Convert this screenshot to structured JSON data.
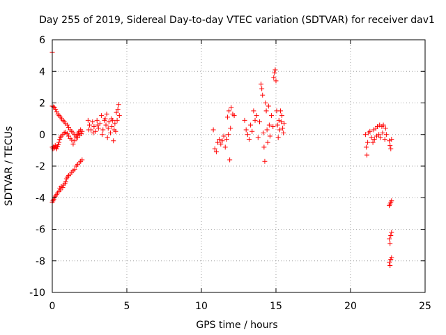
{
  "chart_data": {
    "type": "scatter",
    "title": "Day 255 of 2019, Sidereal Day-to-day VTEC variation (SDTVAR) for receiver dav1",
    "xlabel": "GPS time / hours",
    "ylabel": "SDTVAR / TECUs",
    "xlim": [
      0,
      25
    ],
    "ylim": [
      -10,
      6
    ],
    "xticks": [
      0,
      5,
      10,
      15,
      20,
      25
    ],
    "yticks": [
      -10,
      -8,
      -6,
      -4,
      -2,
      0,
      2,
      4,
      6
    ],
    "grid": true,
    "marker": "+",
    "color": "#ff0000",
    "series": [
      {
        "name": "dav1",
        "points": [
          [
            0.0,
            5.2
          ],
          [
            0.0,
            1.8
          ],
          [
            0.08,
            1.75
          ],
          [
            0.15,
            1.7
          ],
          [
            0.22,
            1.6
          ],
          [
            0.3,
            1.45
          ],
          [
            0.38,
            1.3
          ],
          [
            0.46,
            1.2
          ],
          [
            0.55,
            1.1
          ],
          [
            0.63,
            1.0
          ],
          [
            0.72,
            0.9
          ],
          [
            0.8,
            0.8
          ],
          [
            0.9,
            0.7
          ],
          [
            1.0,
            0.6
          ],
          [
            1.1,
            0.45
          ],
          [
            1.2,
            0.3
          ],
          [
            1.3,
            0.2
          ],
          [
            1.4,
            0.1
          ],
          [
            1.5,
            0.0
          ],
          [
            1.6,
            -0.1
          ],
          [
            1.7,
            -0.2
          ],
          [
            0.0,
            -0.8
          ],
          [
            0.05,
            -0.9
          ],
          [
            0.1,
            -0.75
          ],
          [
            0.15,
            -0.85
          ],
          [
            0.2,
            -0.7
          ],
          [
            0.25,
            -0.8
          ],
          [
            0.3,
            -0.9
          ],
          [
            0.35,
            -0.75
          ],
          [
            0.4,
            -0.65
          ],
          [
            0.45,
            -0.5
          ],
          [
            0.5,
            -0.3
          ],
          [
            0.55,
            -0.2
          ],
          [
            0.6,
            -0.1
          ],
          [
            0.7,
            0.0
          ],
          [
            0.8,
            0.1
          ],
          [
            0.9,
            0.15
          ],
          [
            1.0,
            0.05
          ],
          [
            1.1,
            -0.1
          ],
          [
            1.2,
            -0.25
          ],
          [
            1.3,
            -0.35
          ],
          [
            1.4,
            -0.6
          ],
          [
            1.5,
            -0.4
          ],
          [
            1.6,
            -0.2
          ],
          [
            1.7,
            0.0
          ],
          [
            1.8,
            0.2
          ],
          [
            1.9,
            0.3
          ],
          [
            2.0,
            0.2
          ],
          [
            1.75,
            0.1
          ],
          [
            1.85,
            -0.05
          ],
          [
            1.95,
            0.05
          ],
          [
            0.0,
            -4.3
          ],
          [
            0.05,
            -4.2
          ],
          [
            0.1,
            -4.1
          ],
          [
            0.15,
            -4.0
          ],
          [
            0.2,
            -3.9
          ],
          [
            0.3,
            -3.8
          ],
          [
            0.35,
            -3.7
          ],
          [
            0.45,
            -3.6
          ],
          [
            0.5,
            -3.4
          ],
          [
            0.55,
            -3.5
          ],
          [
            0.6,
            -3.3
          ],
          [
            0.7,
            -3.35
          ],
          [
            0.75,
            -3.2
          ],
          [
            0.85,
            -3.1
          ],
          [
            0.9,
            -3.0
          ],
          [
            0.95,
            -2.8
          ],
          [
            1.0,
            -2.7
          ],
          [
            1.1,
            -2.6
          ],
          [
            1.2,
            -2.5
          ],
          [
            1.3,
            -2.4
          ],
          [
            1.4,
            -2.3
          ],
          [
            1.5,
            -2.2
          ],
          [
            1.6,
            -2.0
          ],
          [
            1.7,
            -1.9
          ],
          [
            1.8,
            -1.8
          ],
          [
            1.9,
            -1.7
          ],
          [
            2.0,
            -1.6
          ],
          [
            2.4,
            0.9
          ],
          [
            2.5,
            0.6
          ],
          [
            2.6,
            0.3
          ],
          [
            2.7,
            0.8
          ],
          [
            2.8,
            0.5
          ],
          [
            2.9,
            0.2
          ],
          [
            3.0,
            0.9
          ],
          [
            3.1,
            0.4
          ],
          [
            3.2,
            0.7
          ],
          [
            3.3,
            1.2
          ],
          [
            3.4,
            0.3
          ],
          [
            3.5,
            0.9
          ],
          [
            3.6,
            0.6
          ],
          [
            3.7,
            -0.2
          ],
          [
            3.8,
            0.8
          ],
          [
            3.9,
            0.1
          ],
          [
            4.0,
            0.5
          ],
          [
            4.1,
            -0.4
          ],
          [
            4.2,
            0.7
          ],
          [
            4.3,
            1.4
          ],
          [
            4.35,
            0.9
          ],
          [
            4.4,
            1.6
          ],
          [
            4.45,
            1.9
          ],
          [
            4.5,
            1.2
          ],
          [
            3.55,
            1.0
          ],
          [
            3.75,
            0.4
          ],
          [
            3.95,
            1.0
          ],
          [
            4.15,
            0.3
          ],
          [
            2.45,
            0.3
          ],
          [
            2.75,
            0.1
          ],
          [
            3.05,
            0.6
          ],
          [
            3.35,
            0.0
          ],
          [
            3.65,
            1.3
          ],
          [
            4.05,
            0.9
          ],
          [
            4.25,
            0.2
          ],
          [
            10.8,
            0.3
          ],
          [
            10.9,
            -0.9
          ],
          [
            11.0,
            -1.1
          ],
          [
            11.1,
            -0.5
          ],
          [
            11.2,
            -0.3
          ],
          [
            11.3,
            -0.6
          ],
          [
            11.4,
            -0.4
          ],
          [
            11.5,
            -0.1
          ],
          [
            11.6,
            -0.8
          ],
          [
            11.7,
            -0.3
          ],
          [
            11.8,
            0.0
          ],
          [
            11.9,
            -1.6
          ],
          [
            11.95,
            0.4
          ],
          [
            11.85,
            1.5
          ],
          [
            12.0,
            1.7
          ],
          [
            12.1,
            1.3
          ],
          [
            12.2,
            1.2
          ],
          [
            11.75,
            1.1
          ],
          [
            12.9,
            0.9
          ],
          [
            13.0,
            0.3
          ],
          [
            13.1,
            0.0
          ],
          [
            13.2,
            -0.3
          ],
          [
            13.3,
            0.6
          ],
          [
            13.4,
            0.2
          ],
          [
            13.5,
            1.5
          ],
          [
            13.6,
            0.9
          ],
          [
            13.7,
            1.2
          ],
          [
            13.8,
            -0.2
          ],
          [
            13.9,
            0.8
          ],
          [
            14.0,
            3.2
          ],
          [
            14.05,
            2.9
          ],
          [
            14.1,
            2.5
          ],
          [
            14.15,
            0.1
          ],
          [
            14.2,
            -0.8
          ],
          [
            14.25,
            -1.7
          ],
          [
            14.3,
            2.0
          ],
          [
            14.35,
            1.5
          ],
          [
            14.4,
            0.3
          ],
          [
            14.45,
            -0.5
          ],
          [
            14.5,
            1.8
          ],
          [
            14.55,
            0.6
          ],
          [
            14.6,
            -0.1
          ],
          [
            14.7,
            1.2
          ],
          [
            14.8,
            0.5
          ],
          [
            14.85,
            3.6
          ],
          [
            14.9,
            3.9
          ],
          [
            14.95,
            4.1
          ],
          [
            15.0,
            3.4
          ],
          [
            15.05,
            1.5
          ],
          [
            15.1,
            0.6
          ],
          [
            15.15,
            -0.2
          ],
          [
            15.2,
            0.9
          ],
          [
            15.25,
            0.3
          ],
          [
            15.3,
            1.5
          ],
          [
            15.35,
            0.8
          ],
          [
            15.4,
            1.2
          ],
          [
            15.45,
            0.4
          ],
          [
            15.5,
            0.1
          ],
          [
            15.55,
            0.7
          ],
          [
            21.0,
            0.0
          ],
          [
            21.05,
            -0.8
          ],
          [
            21.1,
            -1.3
          ],
          [
            21.15,
            -0.5
          ],
          [
            21.2,
            0.1
          ],
          [
            21.3,
            0.2
          ],
          [
            21.4,
            -0.2
          ],
          [
            21.5,
            -0.5
          ],
          [
            21.55,
            0.3
          ],
          [
            21.6,
            -0.3
          ],
          [
            21.7,
            0.4
          ],
          [
            21.75,
            -0.1
          ],
          [
            21.8,
            0.5
          ],
          [
            21.9,
            0.0
          ],
          [
            21.95,
            0.6
          ],
          [
            22.0,
            -0.2
          ],
          [
            22.1,
            0.5
          ],
          [
            22.15,
            0.1
          ],
          [
            22.2,
            0.6
          ],
          [
            22.3,
            -0.3
          ],
          [
            22.35,
            0.4
          ],
          [
            22.4,
            0.0
          ],
          [
            22.6,
            -0.4
          ],
          [
            22.65,
            -0.7
          ],
          [
            22.7,
            -0.9
          ],
          [
            22.75,
            -0.3
          ],
          [
            22.6,
            -4.5
          ],
          [
            22.65,
            -4.4
          ],
          [
            22.7,
            -4.3
          ],
          [
            22.75,
            -4.2
          ],
          [
            22.6,
            -6.6
          ],
          [
            22.65,
            -6.9
          ],
          [
            22.7,
            -6.4
          ],
          [
            22.75,
            -6.2
          ],
          [
            22.6,
            -8.1
          ],
          [
            22.65,
            -8.3
          ],
          [
            22.7,
            -7.9
          ],
          [
            22.75,
            -7.8
          ]
        ]
      }
    ]
  }
}
